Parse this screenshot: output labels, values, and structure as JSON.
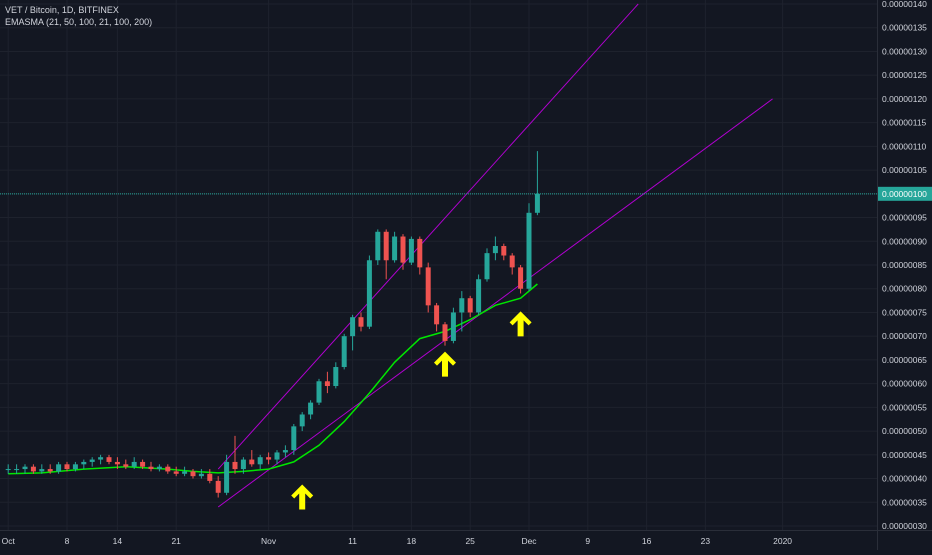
{
  "legend": {
    "symbol_line": "VET / Bitcoin, 1D, BITFINEX",
    "indicator_line": "EMASMA (21, 50, 100, 21, 100, 200)"
  },
  "colors": {
    "background": "#131722",
    "grid": "#1e222d",
    "up_candle": "#26a69a",
    "down_candle": "#ef5350",
    "ema_line": "#00e600",
    "trend_lines": "#b000d0",
    "price_line": "#26a69a",
    "arrows": "#ffff00",
    "axis_text": "#d1d4dc"
  },
  "chart_data": {
    "type": "candlestick",
    "title": "VET / Bitcoin, 1D, BITFINEX",
    "ylim": [
      3e-07,
      1.4e-06
    ],
    "y_ticks": [
      "0.00000140",
      "0.00000135",
      "0.00000130",
      "0.00000125",
      "0.00000120",
      "0.00000115",
      "0.00000110",
      "0.00000105",
      "0.00000100",
      "0.00000095",
      "0.00000090",
      "0.00000085",
      "0.00000080",
      "0.00000075",
      "0.00000070",
      "0.00000065",
      "0.00000060",
      "0.00000055",
      "0.00000050",
      "0.00000045",
      "0.00000040",
      "0.00000035",
      "0.00000030"
    ],
    "x_ticks": [
      "Oct",
      "8",
      "14",
      "21",
      "Nov",
      "11",
      "18",
      "25",
      "Dec",
      "9",
      "16",
      "23",
      "2020"
    ],
    "current_price_label": "0.00000100",
    "current_price": 1e-06,
    "candles": [
      {
        "date": "Oct 1",
        "o": 4.2e-07,
        "h": 4.3e-07,
        "l": 4.1e-07,
        "c": 4.2e-07
      },
      {
        "date": "Oct 2",
        "o": 4.2e-07,
        "h": 4.3e-07,
        "l": 4.1e-07,
        "c": 4.2e-07
      },
      {
        "date": "Oct 3",
        "o": 4.2e-07,
        "h": 4.3e-07,
        "l": 4.1e-07,
        "c": 4.25e-07
      },
      {
        "date": "Oct 4",
        "o": 4.25e-07,
        "h": 4.3e-07,
        "l": 4.1e-07,
        "c": 4.15e-07
      },
      {
        "date": "Oct 5",
        "o": 4.15e-07,
        "h": 4.3e-07,
        "l": 4.1e-07,
        "c": 4.2e-07
      },
      {
        "date": "Oct 6",
        "o": 4.2e-07,
        "h": 4.3e-07,
        "l": 4.1e-07,
        "c": 4.15e-07
      },
      {
        "date": "Oct 7",
        "o": 4.15e-07,
        "h": 4.35e-07,
        "l": 4.1e-07,
        "c": 4.3e-07
      },
      {
        "date": "Oct 8",
        "o": 4.3e-07,
        "h": 4.35e-07,
        "l": 4.15e-07,
        "c": 4.2e-07
      },
      {
        "date": "Oct 9",
        "o": 4.2e-07,
        "h": 4.35e-07,
        "l": 4.15e-07,
        "c": 4.3e-07
      },
      {
        "date": "Oct 10",
        "o": 4.3e-07,
        "h": 4.4e-07,
        "l": 4.2e-07,
        "c": 4.35e-07
      },
      {
        "date": "Oct 11",
        "o": 4.35e-07,
        "h": 4.45e-07,
        "l": 4.25e-07,
        "c": 4.4e-07
      },
      {
        "date": "Oct 12",
        "o": 4.4e-07,
        "h": 4.5e-07,
        "l": 4.3e-07,
        "c": 4.45e-07
      },
      {
        "date": "Oct 13",
        "o": 4.45e-07,
        "h": 4.5e-07,
        "l": 4.3e-07,
        "c": 4.35e-07
      },
      {
        "date": "Oct 14",
        "o": 4.35e-07,
        "h": 4.45e-07,
        "l": 4.2e-07,
        "c": 4.3e-07
      },
      {
        "date": "Oct 15",
        "o": 4.3e-07,
        "h": 4.4e-07,
        "l": 4.2e-07,
        "c": 4.25e-07
      },
      {
        "date": "Oct 16",
        "o": 4.25e-07,
        "h": 4.45e-07,
        "l": 4.2e-07,
        "c": 4.35e-07
      },
      {
        "date": "Oct 17",
        "o": 4.35e-07,
        "h": 4.4e-07,
        "l": 4.2e-07,
        "c": 4.25e-07
      },
      {
        "date": "Oct 18",
        "o": 4.25e-07,
        "h": 4.35e-07,
        "l": 4.15e-07,
        "c": 4.2e-07
      },
      {
        "date": "Oct 19",
        "o": 4.2e-07,
        "h": 4.3e-07,
        "l": 4.15e-07,
        "c": 4.25e-07
      },
      {
        "date": "Oct 20",
        "o": 4.25e-07,
        "h": 4.3e-07,
        "l": 4.1e-07,
        "c": 4.15e-07
      },
      {
        "date": "Oct 21",
        "o": 4.15e-07,
        "h": 4.25e-07,
        "l": 4.05e-07,
        "c": 4.1e-07
      },
      {
        "date": "Oct 22",
        "o": 4.1e-07,
        "h": 4.25e-07,
        "l": 4.05e-07,
        "c": 4.15e-07
      },
      {
        "date": "Oct 23",
        "o": 4.15e-07,
        "h": 4.2e-07,
        "l": 4e-07,
        "c": 4.05e-07
      },
      {
        "date": "Oct 24",
        "o": 4.05e-07,
        "h": 4.2e-07,
        "l": 4e-07,
        "c": 4.1e-07
      },
      {
        "date": "Oct 25",
        "o": 4.1e-07,
        "h": 4.2e-07,
        "l": 3.9e-07,
        "c": 3.95e-07
      },
      {
        "date": "Oct 26",
        "o": 3.95e-07,
        "h": 4.05e-07,
        "l": 3.6e-07,
        "c": 3.7e-07
      },
      {
        "date": "Oct 27",
        "o": 3.7e-07,
        "h": 4.5e-07,
        "l": 3.65e-07,
        "c": 4.35e-07
      },
      {
        "date": "Oct 28",
        "o": 4.35e-07,
        "h": 4.9e-07,
        "l": 4.1e-07,
        "c": 4.2e-07
      },
      {
        "date": "Oct 29",
        "o": 4.2e-07,
        "h": 4.45e-07,
        "l": 4.1e-07,
        "c": 4.4e-07
      },
      {
        "date": "Oct 30",
        "o": 4.4e-07,
        "h": 4.6e-07,
        "l": 4.25e-07,
        "c": 4.3e-07
      },
      {
        "date": "Oct 31",
        "o": 4.3e-07,
        "h": 4.5e-07,
        "l": 4.2e-07,
        "c": 4.45e-07
      },
      {
        "date": "Nov 1",
        "o": 4.45e-07,
        "h": 4.55e-07,
        "l": 4.3e-07,
        "c": 4.4e-07
      },
      {
        "date": "Nov 2",
        "o": 4.4e-07,
        "h": 4.6e-07,
        "l": 4.3e-07,
        "c": 4.55e-07
      },
      {
        "date": "Nov 3",
        "o": 4.55e-07,
        "h": 4.7e-07,
        "l": 4.45e-07,
        "c": 4.6e-07
      },
      {
        "date": "Nov 4",
        "o": 4.6e-07,
        "h": 5.15e-07,
        "l": 4.5e-07,
        "c": 5.1e-07
      },
      {
        "date": "Nov 5",
        "o": 5.1e-07,
        "h": 5.4e-07,
        "l": 5e-07,
        "c": 5.35e-07
      },
      {
        "date": "Nov 6",
        "o": 5.35e-07,
        "h": 5.65e-07,
        "l": 5.25e-07,
        "c": 5.6e-07
      },
      {
        "date": "Nov 7",
        "o": 5.6e-07,
        "h": 6.1e-07,
        "l": 5.55e-07,
        "c": 6.05e-07
      },
      {
        "date": "Nov 8",
        "o": 6.05e-07,
        "h": 6.25e-07,
        "l": 5.8e-07,
        "c": 5.95e-07
      },
      {
        "date": "Nov 9",
        "o": 5.95e-07,
        "h": 6.45e-07,
        "l": 5.9e-07,
        "c": 6.35e-07
      },
      {
        "date": "Nov 10",
        "o": 6.35e-07,
        "h": 7.05e-07,
        "l": 6.3e-07,
        "c": 7e-07
      },
      {
        "date": "Nov 11",
        "o": 7e-07,
        "h": 7.45e-07,
        "l": 6.7e-07,
        "c": 7.4e-07
      },
      {
        "date": "Nov 12",
        "o": 7.4e-07,
        "h": 7.5e-07,
        "l": 7.1e-07,
        "c": 7.2e-07
      },
      {
        "date": "Nov 13",
        "o": 7.2e-07,
        "h": 8.7e-07,
        "l": 7.15e-07,
        "c": 8.6e-07
      },
      {
        "date": "Nov 14",
        "o": 8.6e-07,
        "h": 9.25e-07,
        "l": 8.5e-07,
        "c": 9.2e-07
      },
      {
        "date": "Nov 15",
        "o": 9.2e-07,
        "h": 9.25e-07,
        "l": 8.2e-07,
        "c": 8.6e-07
      },
      {
        "date": "Nov 16",
        "o": 8.6e-07,
        "h": 9.2e-07,
        "l": 8.55e-07,
        "c": 9.1e-07
      },
      {
        "date": "Nov 17",
        "o": 9.1e-07,
        "h": 9.15e-07,
        "l": 8.4e-07,
        "c": 8.55e-07
      },
      {
        "date": "Nov 18",
        "o": 8.55e-07,
        "h": 9.1e-07,
        "l": 8.5e-07,
        "c": 9.05e-07
      },
      {
        "date": "Nov 19",
        "o": 9.05e-07,
        "h": 9.1e-07,
        "l": 8.3e-07,
        "c": 8.45e-07
      },
      {
        "date": "Nov 20",
        "o": 8.45e-07,
        "h": 8.55e-07,
        "l": 7.5e-07,
        "c": 7.65e-07
      },
      {
        "date": "Nov 21",
        "o": 7.65e-07,
        "h": 7.7e-07,
        "l": 7.1e-07,
        "c": 7.25e-07
      },
      {
        "date": "Nov 22",
        "o": 7.25e-07,
        "h": 7.3e-07,
        "l": 6.8e-07,
        "c": 6.9e-07
      },
      {
        "date": "Nov 23",
        "o": 6.9e-07,
        "h": 7.6e-07,
        "l": 6.85e-07,
        "c": 7.5e-07
      },
      {
        "date": "Nov 24",
        "o": 7.5e-07,
        "h": 7.95e-07,
        "l": 7.1e-07,
        "c": 7.8e-07
      },
      {
        "date": "Nov 25",
        "o": 7.8e-07,
        "h": 7.85e-07,
        "l": 7.4e-07,
        "c": 7.5e-07
      },
      {
        "date": "Nov 26",
        "o": 7.5e-07,
        "h": 8.3e-07,
        "l": 7.45e-07,
        "c": 8.2e-07
      },
      {
        "date": "Nov 27",
        "o": 8.2e-07,
        "h": 8.85e-07,
        "l": 8.15e-07,
        "c": 8.75e-07
      },
      {
        "date": "Nov 28",
        "o": 8.75e-07,
        "h": 9.1e-07,
        "l": 8.6e-07,
        "c": 8.9e-07
      },
      {
        "date": "Nov 29",
        "o": 8.9e-07,
        "h": 8.95e-07,
        "l": 8.6e-07,
        "c": 8.7e-07
      },
      {
        "date": "Nov 30",
        "o": 8.7e-07,
        "h": 8.75e-07,
        "l": 8.3e-07,
        "c": 8.45e-07
      },
      {
        "date": "Dec 1",
        "o": 8.45e-07,
        "h": 8.5e-07,
        "l": 7.9e-07,
        "c": 8e-07
      },
      {
        "date": "Dec 2",
        "o": 8e-07,
        "h": 9.8e-07,
        "l": 7.95e-07,
        "c": 9.6e-07
      },
      {
        "date": "Dec 3",
        "o": 9.6e-07,
        "h": 1.09e-06,
        "l": 9.55e-07,
        "c": 1e-06
      }
    ],
    "ema_line": [
      {
        "date": "Oct 1",
        "v": 4.1e-07
      },
      {
        "date": "Oct 5",
        "v": 4.12e-07
      },
      {
        "date": "Oct 10",
        "v": 4.2e-07
      },
      {
        "date": "Oct 15",
        "v": 4.25e-07
      },
      {
        "date": "Oct 20",
        "v": 4.2e-07
      },
      {
        "date": "Oct 23",
        "v": 4.15e-07
      },
      {
        "date": "Oct 26",
        "v": 4.12e-07
      },
      {
        "date": "Oct 29",
        "v": 4.15e-07
      },
      {
        "date": "Nov 1",
        "v": 4.2e-07
      },
      {
        "date": "Nov 4",
        "v": 4.35e-07
      },
      {
        "date": "Nov 7",
        "v": 4.7e-07
      },
      {
        "date": "Nov 10",
        "v": 5.2e-07
      },
      {
        "date": "Nov 13",
        "v": 5.8e-07
      },
      {
        "date": "Nov 16",
        "v": 6.45e-07
      },
      {
        "date": "Nov 19",
        "v": 6.95e-07
      },
      {
        "date": "Nov 22",
        "v": 7.1e-07
      },
      {
        "date": "Nov 25",
        "v": 7.35e-07
      },
      {
        "date": "Nov 28",
        "v": 7.65e-07
      },
      {
        "date": "Dec 1",
        "v": 7.8e-07
      },
      {
        "date": "Dec 3",
        "v": 8.1e-07
      }
    ],
    "trend_lines": [
      {
        "name": "upper-channel",
        "from": {
          "date": "Oct 26",
          "price": 4.2e-07
        },
        "to": {
          "date": "Dec 15",
          "price": 1.4e-06
        }
      },
      {
        "name": "lower-channel",
        "from": {
          "date": "Oct 26",
          "price": 3.4e-07
        },
        "to": {
          "date": "Dec 31",
          "price": 1.2e-06
        }
      }
    ],
    "arrows": [
      {
        "date": "Nov 5",
        "price": 3.6e-07
      },
      {
        "date": "Nov 22",
        "price": 6.4e-07
      },
      {
        "date": "Dec 1",
        "price": 7.25e-07
      }
    ]
  }
}
